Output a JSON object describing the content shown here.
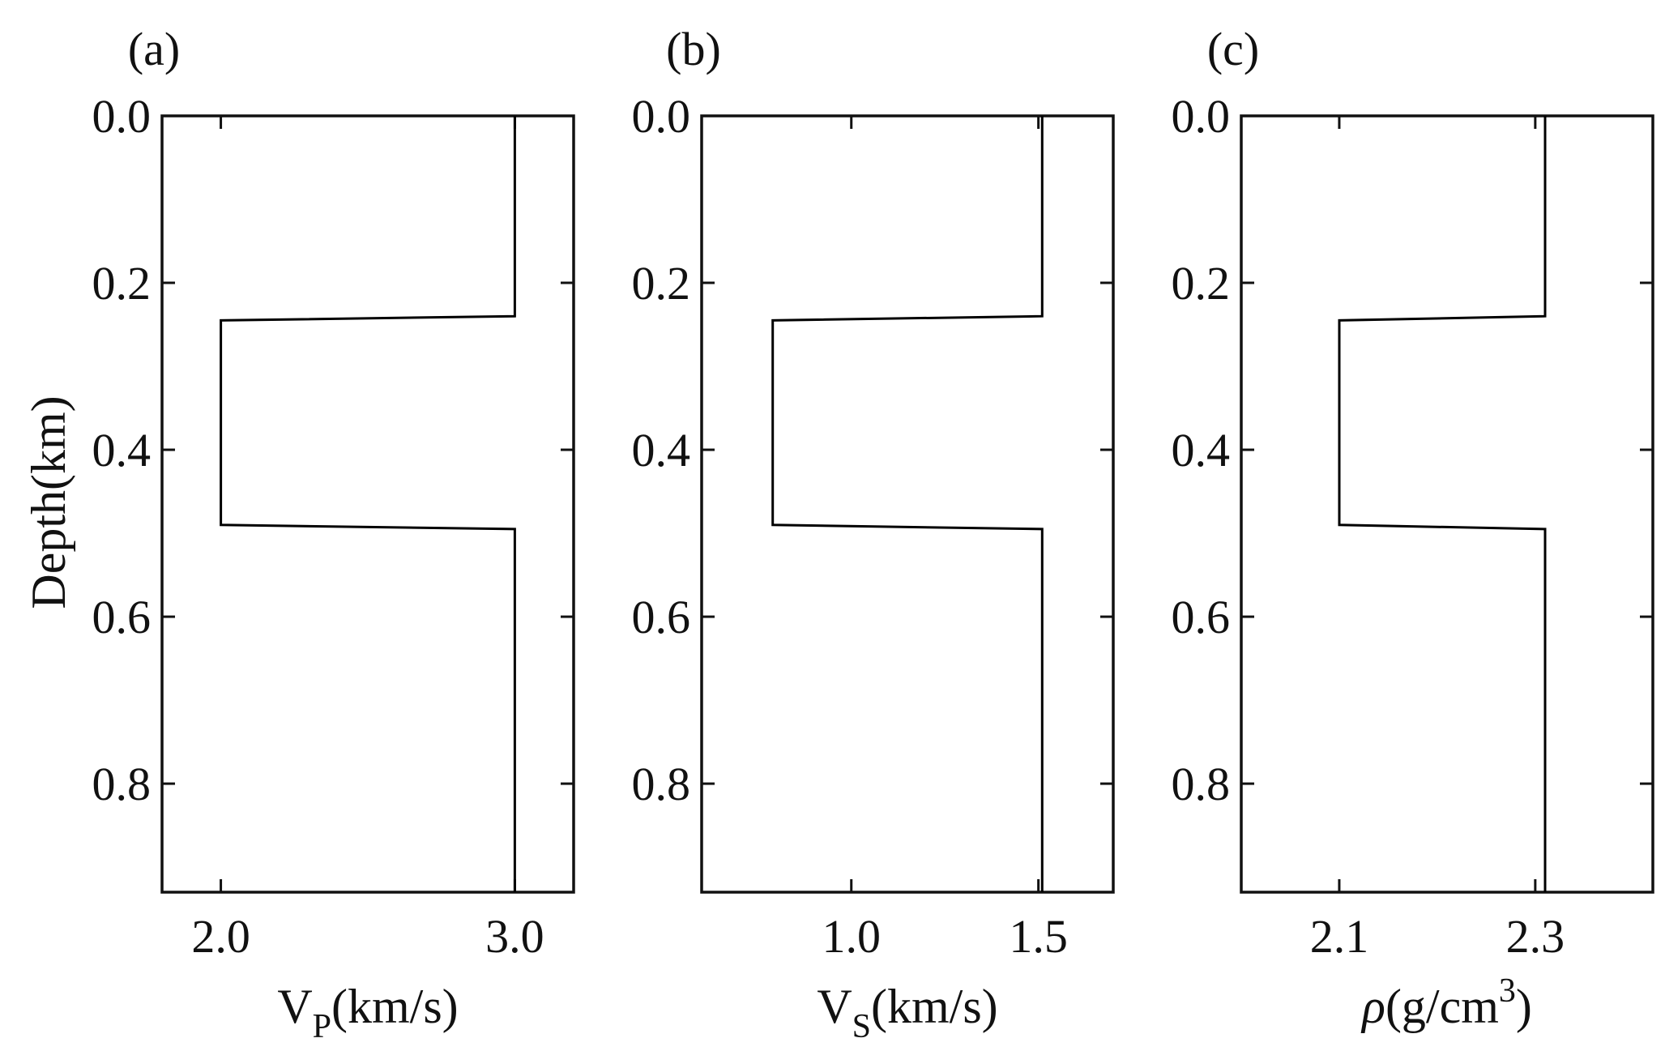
{
  "chart_data": [
    {
      "type": "line",
      "panel_label": "(a)",
      "xlabel": {
        "main": "V",
        "sub": "P",
        "tail": "(km/s)"
      },
      "ylabel": "Depth(km)",
      "xlim": [
        1.8,
        3.2
      ],
      "ylim": [
        0,
        0.93
      ],
      "y_inverted": true,
      "xticks": [
        2.0,
        3.0
      ],
      "xtick_labels": [
        "2.0",
        "3.0"
      ],
      "yticks": [
        0.0,
        0.2,
        0.4,
        0.6,
        0.8
      ],
      "ytick_labels": [
        "0.0",
        "0.2",
        "0.4",
        "0.6",
        "0.8"
      ],
      "series": [
        {
          "x": [
            3.0,
            3.0,
            2.0,
            2.0,
            3.0,
            3.0
          ],
          "y": [
            0.0,
            0.24,
            0.245,
            0.49,
            0.495,
            0.93
          ]
        }
      ]
    },
    {
      "type": "line",
      "panel_label": "(b)",
      "xlabel": {
        "main": "V",
        "sub": "S",
        "tail": "(km/s)"
      },
      "xlim": [
        0.6,
        1.7
      ],
      "ylim": [
        0,
        0.93
      ],
      "y_inverted": true,
      "xticks": [
        1.0,
        1.5
      ],
      "xtick_labels": [
        "1.0",
        "1.5"
      ],
      "yticks": [
        0.0,
        0.2,
        0.4,
        0.6,
        0.8
      ],
      "ytick_labels": [
        "0.0",
        "0.2",
        "0.4",
        "0.6",
        "0.8"
      ],
      "series": [
        {
          "x": [
            1.51,
            1.51,
            0.79,
            0.79,
            1.51,
            1.51
          ],
          "y": [
            0.0,
            0.24,
            0.245,
            0.49,
            0.495,
            0.93
          ]
        }
      ]
    },
    {
      "type": "line",
      "panel_label": "(c)",
      "xlabel": {
        "main": "ρ",
        "tail": "(g/cm",
        "sup": "3",
        "end": ")"
      },
      "xlim": [
        2.0,
        2.42
      ],
      "ylim": [
        0,
        0.93
      ],
      "y_inverted": true,
      "xticks": [
        2.1,
        2.3
      ],
      "xtick_labels": [
        "2.1",
        "2.3"
      ],
      "yticks": [
        0.0,
        0.2,
        0.4,
        0.6,
        0.8
      ],
      "ytick_labels": [
        "0.0",
        "0.2",
        "0.4",
        "0.6",
        "0.8"
      ],
      "series": [
        {
          "x": [
            2.31,
            2.31,
            2.1,
            2.1,
            2.31,
            2.31
          ],
          "y": [
            0.0,
            0.24,
            0.245,
            0.49,
            0.495,
            0.93
          ]
        }
      ]
    }
  ]
}
